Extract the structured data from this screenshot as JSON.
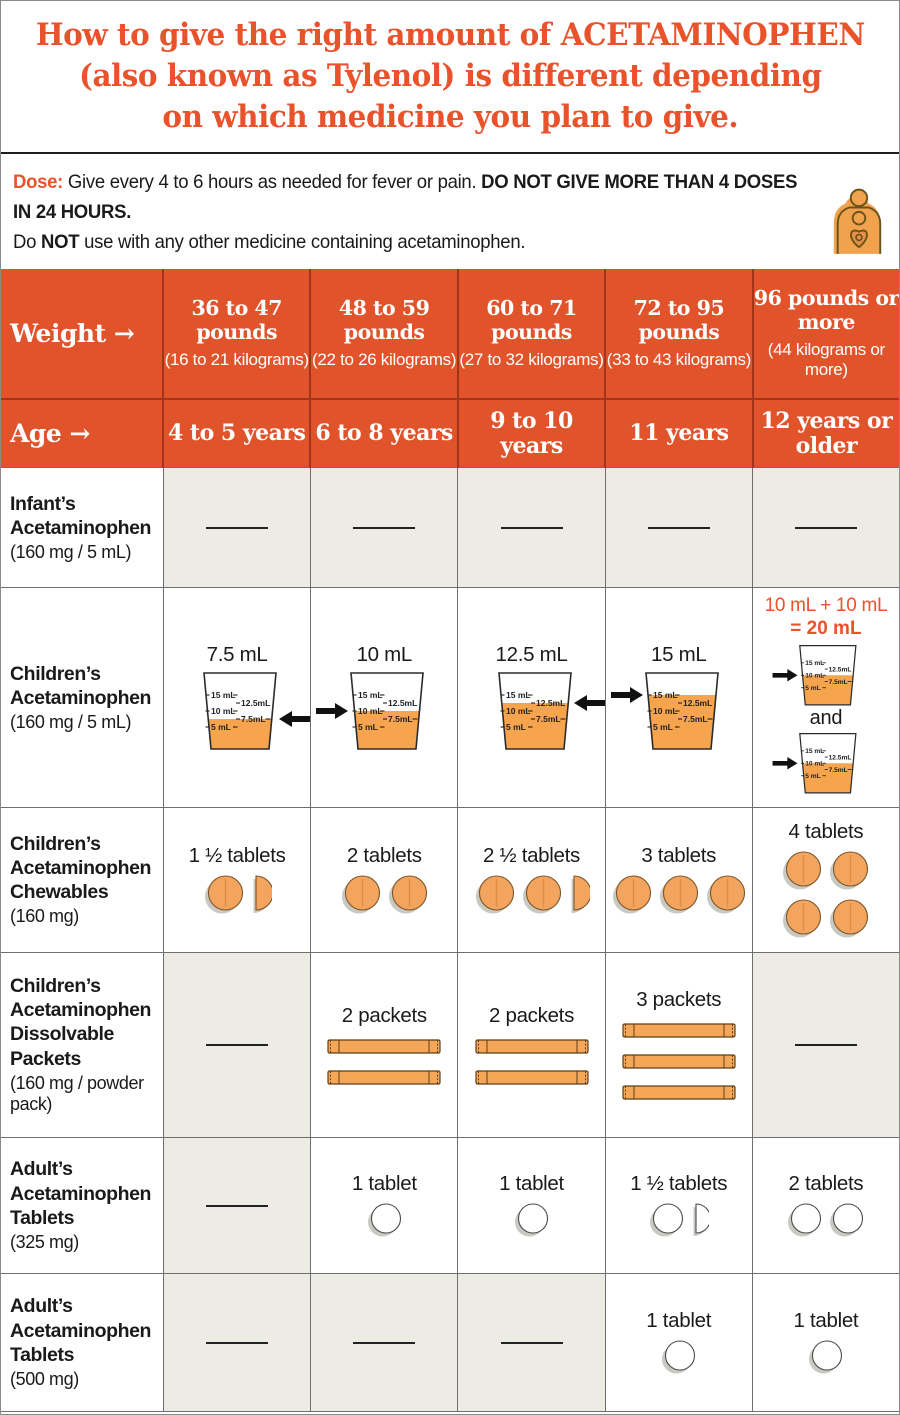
{
  "colors": {
    "header_orange": "#E0532B",
    "title_orange": "#E8532C",
    "header_divider": "#A03518",
    "grid_line": "#6E6E6E",
    "empty_cell_gray": "#ECECE5",
    "liquid_orange": "#F7A44E",
    "chewable_tablet_orange": "#F3A55F",
    "packet_orange": "#F5A757",
    "adult_tablet_white": "#FFFFFF",
    "dash_black": "#222222"
  },
  "icons": {
    "logo": "caregiver-with-child-logo",
    "arrow": "right-arrow",
    "cup": "dosing-cup",
    "tablet": "tablet",
    "half_tablet": "half-tablet",
    "packet": "powder-packet",
    "dash": "no-dose-dash"
  },
  "title": {
    "lines": [
      "How to give the right amount of ACETAMINOPHEN",
      "(also known as Tylenol) is different depending",
      "on which medicine you plan to give."
    ]
  },
  "dose": {
    "segments": [
      {
        "text": "Dose: ",
        "bold": true,
        "orange": true
      },
      {
        "text": "Give every 4 to 6 hours as needed for fever or pain. "
      },
      {
        "text": "DO NOT GIVE MORE THAN 4 DOSES IN 24 HOURS.",
        "bold": true,
        "break_after": true
      },
      {
        "text": "Do "
      },
      {
        "text": "NOT",
        "bold": true
      },
      {
        "text": " use with any other medicine containing acetaminophen."
      }
    ]
  },
  "table": {
    "weight_label": "Weight",
    "age_label": "Age",
    "arrow": "→",
    "columns": [
      {
        "pounds": "36 to 47 pounds",
        "kilograms": "(16 to 21 kilograms)",
        "age": "4 to 5 years"
      },
      {
        "pounds": "48 to 59 pounds",
        "kilograms": "(22 to 26 kilograms)",
        "age": "6 to 8 years"
      },
      {
        "pounds": "60 to 71 pounds",
        "kilograms": "(27 to 32 kilograms)",
        "age": "9 to 10 years"
      },
      {
        "pounds": "72 to 95 pounds",
        "kilograms": "(33 to 43 kilograms)",
        "age": "11 years"
      },
      {
        "pounds": "96 pounds or more",
        "kilograms": "(44 kilograms or more)",
        "age": "12 years or older"
      }
    ],
    "cup_scale": {
      "left": [
        "15 mL",
        "10 mL",
        "5 mL"
      ],
      "right": [
        "12.5mL",
        "7.5mL"
      ]
    },
    "rows": [
      {
        "label_bold": "Infant’s Acetaminophen",
        "label_note": "(160 mg / 5 mL)",
        "cells": [
          {
            "type": "dash"
          },
          {
            "type": "dash"
          },
          {
            "type": "dash"
          },
          {
            "type": "dash"
          },
          {
            "type": "dash"
          }
        ]
      },
      {
        "label_bold": "Children’s Acetaminophen",
        "label_note": "(160 mg / 5 mL)",
        "cells": [
          {
            "type": "cup",
            "label": "7.5 mL",
            "fill_ml": 7.5,
            "arrow": "right"
          },
          {
            "type": "cup",
            "label": "10 mL",
            "fill_ml": 10,
            "arrow": "left"
          },
          {
            "type": "cup",
            "label": "12.5 mL",
            "fill_ml": 12.5,
            "arrow": "right"
          },
          {
            "type": "cup",
            "label": "15 mL",
            "fill_ml": 15,
            "arrow": "left"
          },
          {
            "type": "double-cup",
            "headline": "10 mL + 10 mL",
            "headline2": "= 20 mL",
            "connector": "and",
            "fill_ml": 10,
            "arrow": "left"
          }
        ]
      },
      {
        "label_bold": "Children’s Acetaminophen Chewables",
        "label_note": "(160 mg)",
        "cells": [
          {
            "type": "tablets",
            "label": "1 ½ tablets",
            "full": 1,
            "half": 1,
            "color": "orange"
          },
          {
            "type": "tablets",
            "label": "2 tablets",
            "full": 2,
            "half": 0,
            "color": "orange"
          },
          {
            "type": "tablets",
            "label": "2 ½ tablets",
            "full": 2,
            "half": 1,
            "color": "orange"
          },
          {
            "type": "tablets",
            "label": "3 tablets",
            "full": 3,
            "half": 0,
            "color": "orange"
          },
          {
            "type": "tablets",
            "label": "4 tablets",
            "full": 4,
            "half": 0,
            "color": "orange",
            "grid2x2": true
          }
        ]
      },
      {
        "label_bold": "Children’s Acetaminophen Dissolvable Packets",
        "label_note": "(160 mg / powder pack)",
        "cells": [
          {
            "type": "dash"
          },
          {
            "type": "packets",
            "label": "2 packets",
            "count": 2
          },
          {
            "type": "packets",
            "label": "2 packets",
            "count": 2
          },
          {
            "type": "packets",
            "label": "3 packets",
            "count": 3
          },
          {
            "type": "dash"
          }
        ]
      },
      {
        "label_bold": "Adult’s Acetaminophen Tablets",
        "label_note": "(325 mg)",
        "cells": [
          {
            "type": "dash"
          },
          {
            "type": "tablets",
            "label": "1 tablet",
            "full": 1,
            "half": 0,
            "color": "white"
          },
          {
            "type": "tablets",
            "label": "1 tablet",
            "full": 1,
            "half": 0,
            "color": "white"
          },
          {
            "type": "tablets",
            "label": "1 ½ tablets",
            "full": 1,
            "half": 1,
            "color": "white"
          },
          {
            "type": "tablets",
            "label": "2 tablets",
            "full": 2,
            "half": 0,
            "color": "white"
          }
        ]
      },
      {
        "label_bold": "Adult’s Acetaminophen Tablets",
        "label_note": "(500 mg)",
        "cells": [
          {
            "type": "dash"
          },
          {
            "type": "dash"
          },
          {
            "type": "dash"
          },
          {
            "type": "tablets",
            "label": "1 tablet",
            "full": 1,
            "half": 0,
            "color": "white"
          },
          {
            "type": "tablets",
            "label": "1 tablet",
            "full": 1,
            "half": 0,
            "color": "white"
          }
        ]
      }
    ]
  }
}
